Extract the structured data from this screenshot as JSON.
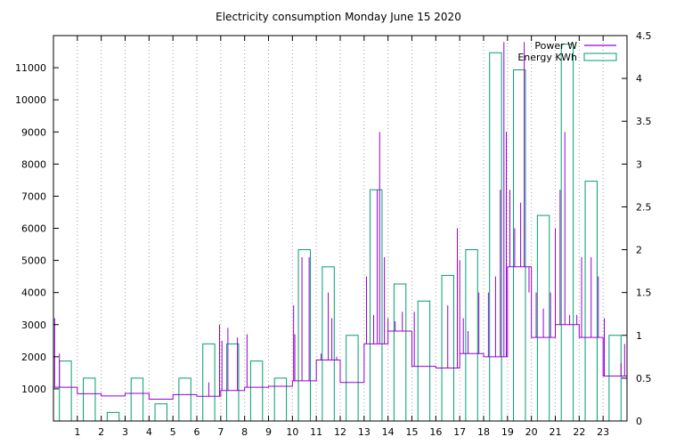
{
  "chart_data": {
    "type": "line+bar",
    "title": "Electricity consumption Monday June 15 2020",
    "x_ticks": [
      "1",
      "2",
      "3",
      "4",
      "5",
      "6",
      "7",
      "8",
      "9",
      "10",
      "11",
      "12",
      "13",
      "14",
      "15",
      "16",
      "17",
      "18",
      "19",
      "20",
      "21",
      "22",
      "23"
    ],
    "xlim": [
      0,
      24
    ],
    "ylim": [
      0,
      12000
    ],
    "y_ticks": [
      "1000",
      "2000",
      "3000",
      "4000",
      "5000",
      "6000",
      "7000",
      "8000",
      "9000",
      "10000",
      "11000"
    ],
    "y2lim": [
      0,
      4.5
    ],
    "y2_ticks": [
      "0",
      "0.5",
      "1",
      "1.5",
      "2",
      "2.5",
      "3",
      "3.5",
      "4",
      "4.5"
    ],
    "grid": "x-dotted",
    "legend_position": "top-right",
    "colors": {
      "power": "#9400d3",
      "energy": "#009e73"
    },
    "series": [
      {
        "name": "Power W",
        "kind": "line",
        "hourly_baseline": [
          1050,
          850,
          780,
          860,
          680,
          820,
          770,
          950,
          1050,
          1080,
          1250,
          1900,
          1200,
          2400,
          2800,
          1700,
          1650,
          2100,
          2000,
          4800,
          2600,
          3000,
          2600,
          1400
        ],
        "spikes": [
          {
            "x": 0.05,
            "y": 3200
          },
          {
            "x": 0.25,
            "y": 2100
          },
          {
            "x": 6.5,
            "y": 1200
          },
          {
            "x": 6.95,
            "y": 3000
          },
          {
            "x": 7.05,
            "y": 2500
          },
          {
            "x": 7.3,
            "y": 2900
          },
          {
            "x": 7.7,
            "y": 2600
          },
          {
            "x": 8.1,
            "y": 2700
          },
          {
            "x": 10.05,
            "y": 3600
          },
          {
            "x": 10.1,
            "y": 2700
          },
          {
            "x": 10.4,
            "y": 5100
          },
          {
            "x": 10.7,
            "y": 5100
          },
          {
            "x": 11.2,
            "y": 2100
          },
          {
            "x": 11.5,
            "y": 4000
          },
          {
            "x": 11.65,
            "y": 3200
          },
          {
            "x": 11.85,
            "y": 2000
          },
          {
            "x": 13.1,
            "y": 4500
          },
          {
            "x": 13.4,
            "y": 3300
          },
          {
            "x": 13.55,
            "y": 7200
          },
          {
            "x": 13.65,
            "y": 9000
          },
          {
            "x": 13.85,
            "y": 5100
          },
          {
            "x": 14.0,
            "y": 3200
          },
          {
            "x": 14.3,
            "y": 3100
          },
          {
            "x": 14.6,
            "y": 3400
          },
          {
            "x": 15.1,
            "y": 3400
          },
          {
            "x": 16.5,
            "y": 3600
          },
          {
            "x": 16.9,
            "y": 6000
          },
          {
            "x": 17.0,
            "y": 5000
          },
          {
            "x": 17.15,
            "y": 3200
          },
          {
            "x": 17.35,
            "y": 2800
          },
          {
            "x": 17.8,
            "y": 4000
          },
          {
            "x": 18.2,
            "y": 4000
          },
          {
            "x": 18.5,
            "y": 4500
          },
          {
            "x": 18.7,
            "y": 7200
          },
          {
            "x": 18.85,
            "y": 11800
          },
          {
            "x": 18.95,
            "y": 9000
          },
          {
            "x": 19.1,
            "y": 7200
          },
          {
            "x": 19.3,
            "y": 6000
          },
          {
            "x": 19.55,
            "y": 6800
          },
          {
            "x": 19.7,
            "y": 11800
          },
          {
            "x": 19.9,
            "y": 4000
          },
          {
            "x": 20.2,
            "y": 4000
          },
          {
            "x": 20.5,
            "y": 3500
          },
          {
            "x": 20.8,
            "y": 4000
          },
          {
            "x": 21.0,
            "y": 6000
          },
          {
            "x": 21.2,
            "y": 7200
          },
          {
            "x": 21.4,
            "y": 9000
          },
          {
            "x": 21.6,
            "y": 3300
          },
          {
            "x": 21.9,
            "y": 3300
          },
          {
            "x": 22.1,
            "y": 5100
          },
          {
            "x": 22.5,
            "y": 5100
          },
          {
            "x": 22.8,
            "y": 4500
          },
          {
            "x": 23.05,
            "y": 3200
          },
          {
            "x": 23.75,
            "y": 1800
          },
          {
            "x": 23.9,
            "y": 2400
          }
        ]
      },
      {
        "name": "Energy KWh",
        "kind": "bar",
        "x": [
          0,
          1,
          2,
          3,
          4,
          5,
          6,
          7,
          8,
          9,
          10,
          11,
          12,
          13,
          14,
          15,
          16,
          17,
          18,
          19,
          20,
          21,
          22,
          23
        ],
        "values": [
          0.7,
          0.5,
          0.1,
          0.5,
          0.2,
          0.5,
          0.9,
          0.9,
          0.7,
          0.5,
          2.0,
          1.8,
          1.0,
          2.7,
          1.6,
          1.4,
          1.7,
          2.0,
          4.3,
          4.1,
          2.4,
          4.4,
          2.8,
          1.0
        ]
      }
    ]
  }
}
